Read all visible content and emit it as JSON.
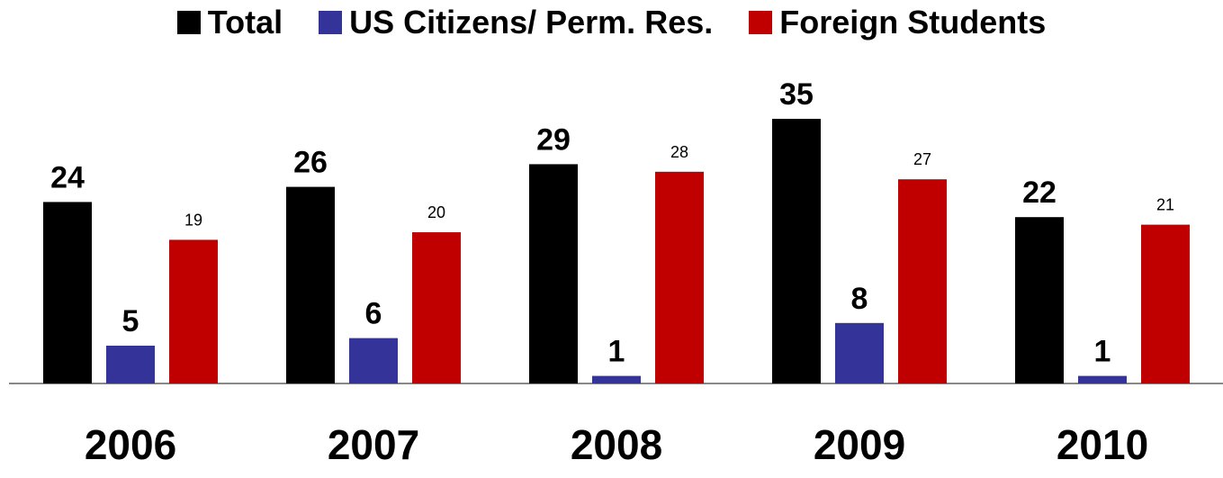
{
  "chart_data": {
    "type": "bar",
    "categories": [
      "2006",
      "2007",
      "2008",
      "2009",
      "2010"
    ],
    "series": [
      {
        "name": "Total",
        "values": [
          24,
          26,
          29,
          35,
          22
        ],
        "color": "#000000",
        "label_style": "bold"
      },
      {
        "name": "US Citizens/ Perm. Res.",
        "values": [
          5,
          6,
          1,
          8,
          1
        ],
        "color": "#333399",
        "label_style": "bold"
      },
      {
        "name": "Foreign Students",
        "values": [
          19,
          20,
          28,
          27,
          21
        ],
        "color": "#c00000",
        "label_style": "small"
      }
    ],
    "ylim": [
      0,
      35
    ],
    "grid": false,
    "legend_position": "top-center",
    "baseline_color": "#888888"
  }
}
